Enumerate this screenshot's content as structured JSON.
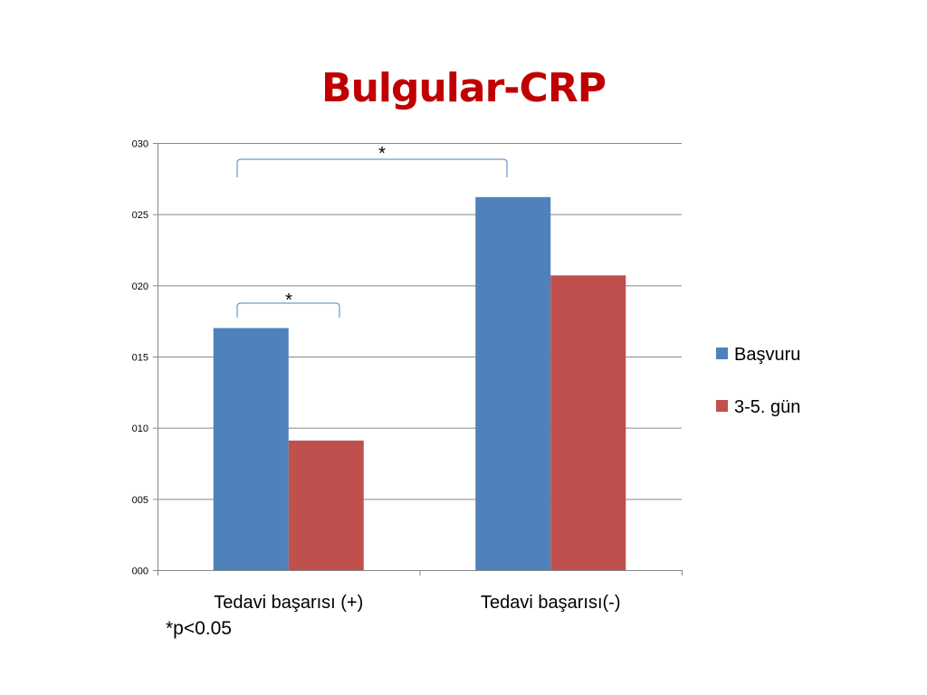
{
  "chart_data": {
    "type": "bar",
    "title": "Bulgular-CRP",
    "categories": [
      "Tedavi başarısı (+)",
      "Tedavi başarısı(-)"
    ],
    "series": [
      {
        "name": "Başvuru",
        "color": "#4f81bd",
        "values": [
          17.0,
          26.2
        ]
      },
      {
        "name": "3-5. gün",
        "color": "#c0504d",
        "values": [
          9.1,
          20.7
        ]
      }
    ],
    "ylim": [
      0,
      30
    ],
    "yticks": [
      0,
      5,
      10,
      15,
      20,
      25,
      30
    ],
    "ytick_labels": [
      "000",
      "005",
      "010",
      "015",
      "020",
      "025",
      "030"
    ],
    "xlabel": "",
    "ylabel": "",
    "grid": true,
    "legend_position": "right",
    "annotations": [
      {
        "text": "*",
        "between": "Başvuru (+) vs 3-5. gün (+)"
      },
      {
        "text": "*",
        "between": "Başvuru (+) vs Başvuru (-)"
      }
    ],
    "footnote": "*p<0.05"
  }
}
